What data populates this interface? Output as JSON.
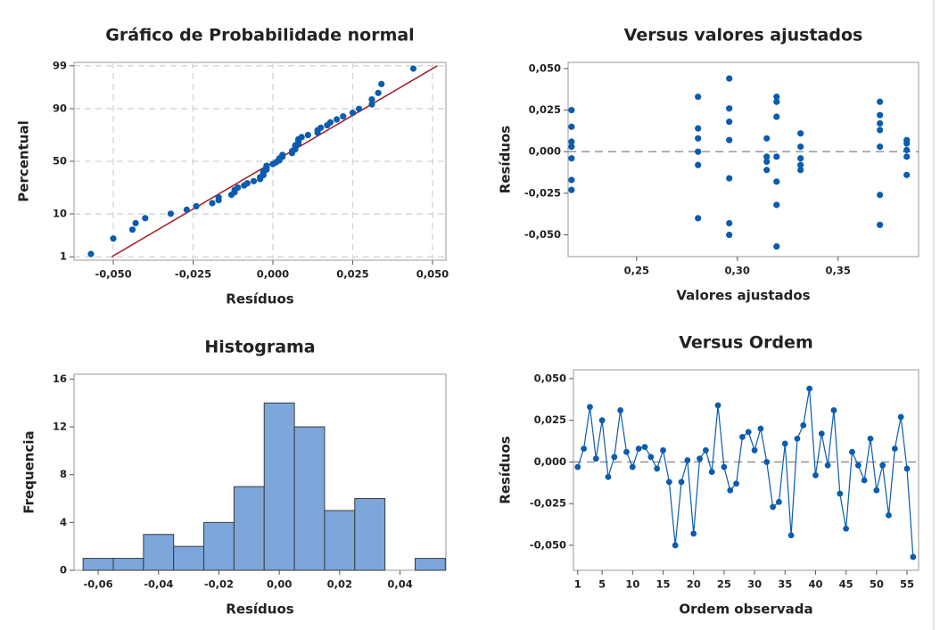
{
  "chart_data": [
    {
      "type": "scatter",
      "title": "Gráfico de Probabilidade normal",
      "xlabel": "Resíduos",
      "ylabel": "Percentual",
      "yscale": "probability",
      "grid": true,
      "xlim": [
        -0.0623,
        0.0542
      ],
      "ylim": [
        0.8,
        99.2
      ],
      "xticks": [
        {
          "value": -0.05,
          "label": "-0,050"
        },
        {
          "value": -0.025,
          "label": "-0,025"
        },
        {
          "value": 0,
          "label": "0,000"
        },
        {
          "value": 0.025,
          "label": "0,025"
        },
        {
          "value": 0.05,
          "label": "0,050"
        }
      ],
      "yticks": [
        1,
        10,
        50,
        90,
        99
      ],
      "series": [
        {
          "color": "#0b5cad",
          "x": [
            -0.057,
            -0.05,
            -0.044,
            -0.043,
            -0.04,
            -0.032,
            -0.027,
            -0.024,
            -0.019,
            -0.017,
            -0.017,
            -0.013,
            -0.012,
            -0.012,
            -0.011,
            -0.009,
            -0.008,
            -0.006,
            -0.004,
            -0.004,
            -0.003,
            -0.003,
            -0.003,
            -0.002,
            -0.002,
            -0.002,
            0,
            0.001,
            0.002,
            0.002,
            0.003,
            0.003,
            0.006,
            0.006,
            0.007,
            0.007,
            0.007,
            0.008,
            0.008,
            0.008,
            0.009,
            0.011,
            0.014,
            0.014,
            0.015,
            0.017,
            0.018,
            0.02,
            0.022,
            0.025,
            0.027,
            0.031,
            0.031,
            0.033,
            0.034,
            0.044
          ],
          "values": [
            1.2,
            3.0,
            4.8,
            6.6,
            8.3,
            10.1,
            11.9,
            13.7,
            15.4,
            17.2,
            19.0,
            20.7,
            22.5,
            24.3,
            26.1,
            27.8,
            29.6,
            31.4,
            33.2,
            34.9,
            36.7,
            38.5,
            40.2,
            42.0,
            43.8,
            45.6,
            47.3,
            49.1,
            50.9,
            52.7,
            54.4,
            56.2,
            58.0,
            59.8,
            61.5,
            63.3,
            65.1,
            66.8,
            68.6,
            70.4,
            72.2,
            73.9,
            75.7,
            77.5,
            79.3,
            81.0,
            82.8,
            84.6,
            86.3,
            88.1,
            89.9,
            91.7,
            93.4,
            95.2,
            97.0,
            98.8
          ]
        }
      ],
      "fit_line": {
        "color": "#a51c24",
        "x": [
          -0.0505,
          0.0515
        ],
        "values": [
          1,
          99
        ]
      }
    },
    {
      "type": "scatter",
      "title": "Versus valores ajustados",
      "xlabel": "Valores ajustados",
      "ylabel": "Resíduos",
      "reference": 0,
      "xlim": [
        0.216,
        0.39
      ],
      "ylim": [
        -0.0631,
        0.0537
      ],
      "xticks": [
        {
          "value": 0.25,
          "label": "0,25"
        },
        {
          "value": 0.3,
          "label": "0,30"
        },
        {
          "value": 0.35,
          "label": "0,35"
        }
      ],
      "yticks": [
        {
          "value": -0.05,
          "label": "-0,050"
        },
        {
          "value": -0.025,
          "label": "-0,025"
        },
        {
          "value": 0,
          "label": "0,000"
        },
        {
          "value": 0.025,
          "label": "0,025"
        },
        {
          "value": 0.05,
          "label": "0,050"
        }
      ],
      "series": [
        {
          "color": "#0b5cad",
          "x": [
            0.2177,
            0.2177,
            0.2177,
            0.2177,
            0.2177,
            0.2177,
            0.2177,
            0.2805,
            0.2805,
            0.2805,
            0.2805,
            0.2805,
            0.2805,
            0.296,
            0.296,
            0.296,
            0.296,
            0.296,
            0.296,
            0.296,
            0.3146,
            0.3146,
            0.3146,
            0.3146,
            0.3195,
            0.3195,
            0.3195,
            0.3195,
            0.3195,
            0.3195,
            0.3195,
            0.3314,
            0.3314,
            0.3314,
            0.3314,
            0.3314,
            0.3708,
            0.3708,
            0.3708,
            0.3708,
            0.3708,
            0.3708,
            0.3708,
            0.3841,
            0.3841,
            0.3841,
            0.3841,
            0.3841
          ],
          "values": [
            0.025,
            0.015,
            0.006,
            0.003,
            -0.004,
            -0.017,
            -0.023,
            0.033,
            0.014,
            0.008,
            0,
            -0.008,
            -0.04,
            0.044,
            0.026,
            0.018,
            0.007,
            -0.016,
            -0.043,
            -0.05,
            0.008,
            -0.003,
            -0.006,
            -0.011,
            0.033,
            0.03,
            0.021,
            -0.003,
            -0.018,
            -0.032,
            -0.057,
            0.011,
            0.003,
            -0.004,
            -0.008,
            -0.011,
            0.03,
            0.022,
            0.017,
            0.013,
            0.003,
            -0.026,
            -0.044,
            0.007,
            0.005,
            0.001,
            -0.003,
            -0.014
          ]
        }
      ]
    },
    {
      "type": "histogram",
      "title": "Histograma",
      "xlabel": "Resíduos",
      "ylabel": "Frequencia",
      "color": "#7da6da",
      "edgecolor": "#3a3a3a",
      "xlim": [
        -0.068,
        0.0552
      ],
      "ylim": [
        0,
        16.4
      ],
      "xticks": [
        {
          "value": -0.06,
          "label": "-0,06"
        },
        {
          "value": -0.04,
          "label": "-0,04"
        },
        {
          "value": -0.02,
          "label": "-0,02"
        },
        {
          "value": 0,
          "label": "0,00"
        },
        {
          "value": 0.02,
          "label": "0,02"
        },
        {
          "value": 0.04,
          "label": "0,04"
        }
      ],
      "yticks": [
        0,
        4,
        8,
        12,
        16
      ],
      "bins": [
        -0.065,
        -0.055,
        -0.045,
        -0.035,
        -0.025,
        -0.015,
        -0.005,
        0.005,
        0.015,
        0.025,
        0.035,
        0.045,
        0.055
      ],
      "values": [
        1,
        1,
        3,
        2,
        4,
        7,
        14,
        12,
        5,
        6,
        0,
        1
      ]
    },
    {
      "type": "line",
      "title": "Versus Ordem",
      "xlabel": "Ordem observada",
      "ylabel": "Resíduos",
      "reference": 0,
      "xlim": [
        0.3,
        56.9
      ],
      "ylim": [
        -0.065,
        0.0553
      ],
      "xticks": [
        1,
        5,
        10,
        15,
        20,
        25,
        30,
        35,
        40,
        45,
        50,
        55
      ],
      "yticks": [
        {
          "value": -0.05,
          "label": "-0,050"
        },
        {
          "value": -0.025,
          "label": "-0,025"
        },
        {
          "value": 0,
          "label": "0,000"
        },
        {
          "value": 0.025,
          "label": "0,025"
        },
        {
          "value": 0.05,
          "label": "0,050"
        }
      ],
      "x": [
        1,
        2,
        3,
        4,
        5,
        6,
        7,
        8,
        9,
        10,
        11,
        12,
        13,
        14,
        15,
        16,
        17,
        18,
        19,
        20,
        21,
        22,
        23,
        24,
        25,
        26,
        27,
        28,
        29,
        30,
        31,
        32,
        33,
        34,
        35,
        36,
        37,
        38,
        39,
        40,
        41,
        42,
        43,
        44,
        45,
        46,
        47,
        48,
        49,
        50,
        51,
        52,
        53,
        54,
        55,
        56
      ],
      "series": [
        {
          "color": "#0b5cad",
          "values": [
            -0.003,
            0.008,
            0.033,
            0.002,
            0.025,
            -0.009,
            0.003,
            0.031,
            0.006,
            -0.003,
            0.008,
            0.009,
            0.003,
            -0.004,
            0.007,
            -0.012,
            -0.05,
            -0.012,
            0.001,
            -0.043,
            0.002,
            0.007,
            -0.006,
            0.034,
            -0.003,
            -0.017,
            -0.013,
            0.015,
            0.018,
            0.007,
            0.02,
            0,
            -0.027,
            -0.024,
            0.011,
            -0.044,
            0.014,
            0.022,
            0.044,
            -0.008,
            0.017,
            -0.002,
            0.031,
            -0.019,
            -0.04,
            0.006,
            -0.002,
            -0.011,
            0.014,
            -0.017,
            -0.002,
            -0.032,
            0.008,
            0.027,
            -0.004,
            -0.057
          ]
        }
      ]
    }
  ]
}
